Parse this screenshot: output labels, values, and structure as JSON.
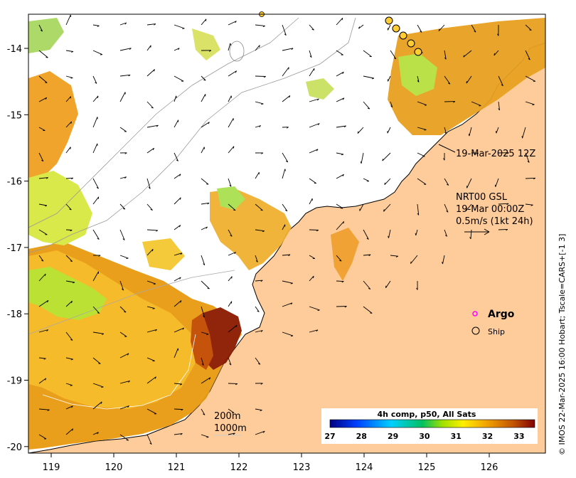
{
  "map": {
    "x_ticks": [
      "119",
      "120",
      "121",
      "122",
      "123",
      "124",
      "125",
      "126"
    ],
    "y_ticks": [
      "-14",
      "-15",
      "-16",
      "-17",
      "-18",
      "-19",
      "-20"
    ],
    "track_label": "19-Mar-2025 12Z",
    "current_note": {
      "line1": "NRT00 GSL",
      "line2": "19-Mar 00:00Z",
      "line3": "0.5m/s (1kt 24h)"
    },
    "legend": {
      "argo": "Argo",
      "ship": "Ship"
    },
    "isobaths": {
      "shallow": "200m",
      "deep": "1000m"
    },
    "colorbar": {
      "title": "4h comp, p50, All Sats",
      "labels": [
        "27",
        "28",
        "29",
        "30",
        "31",
        "32",
        "33"
      ],
      "range": [
        27,
        33.5
      ]
    },
    "credit": "© IMOS 22-Mar-2025 16:00 Hobart; Tscale=CARS+[-1 3]",
    "colors": {
      "land": "#fecb9a",
      "argo": "#ff00ff",
      "hot": "#8b1a00",
      "track": "#ffcc33"
    }
  }
}
